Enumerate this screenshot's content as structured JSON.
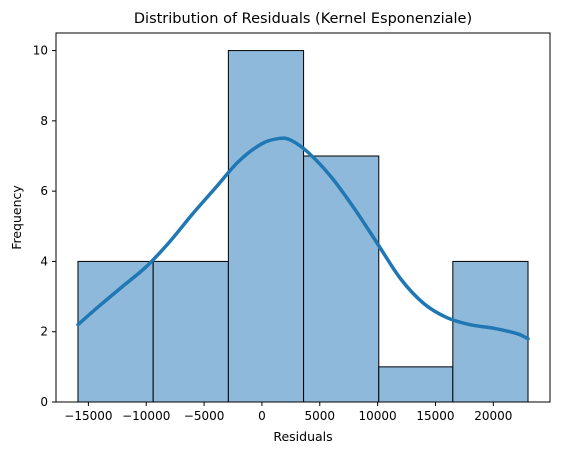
{
  "chart_data": {
    "type": "histogram",
    "title": "Distribution of Residuals (Kernel Esponenziale)",
    "xlabel": "Residuals",
    "ylabel": "Frequency",
    "xlim": [
      -17800,
      24900
    ],
    "ylim": [
      0,
      10.5
    ],
    "xticks": [
      -15000,
      -10000,
      -5000,
      0,
      5000,
      10000,
      15000,
      20000
    ],
    "xtick_labels": [
      "−15000",
      "−10000",
      "−5000",
      "0",
      "5000",
      "10000",
      "15000",
      "20000"
    ],
    "yticks": [
      0,
      2,
      4,
      6,
      8,
      10
    ],
    "ytick_labels": [
      "0",
      "2",
      "4",
      "6",
      "8",
      "10"
    ],
    "bins": [
      {
        "x0": -15900,
        "x1": -9400,
        "count": 4
      },
      {
        "x0": -9400,
        "x1": -2900,
        "count": 4
      },
      {
        "x0": -2900,
        "x1": 3600,
        "count": 10
      },
      {
        "x0": 3600,
        "x1": 10100,
        "count": 7
      },
      {
        "x0": 10100,
        "x1": 16500,
        "count": 1
      },
      {
        "x0": 16500,
        "x1": 23000,
        "count": 4
      }
    ],
    "kde": {
      "x": [
        -15900,
        -14000,
        -12000,
        -10000,
        -8000,
        -6000,
        -4000,
        -2000,
        0,
        1500,
        2500,
        4000,
        6000,
        8000,
        10000,
        12000,
        14000,
        16000,
        18000,
        20000,
        22000,
        23000
      ],
      "y": [
        2.2,
        2.75,
        3.3,
        3.85,
        4.55,
        5.35,
        6.1,
        6.85,
        7.35,
        7.5,
        7.45,
        7.1,
        6.4,
        5.5,
        4.5,
        3.5,
        2.8,
        2.4,
        2.2,
        2.1,
        1.95,
        1.8
      ]
    },
    "grid": false,
    "colors": {
      "bar_fill": "#8fb9db",
      "bar_edge": "#000000",
      "kde_line": "#1f77b4"
    }
  }
}
